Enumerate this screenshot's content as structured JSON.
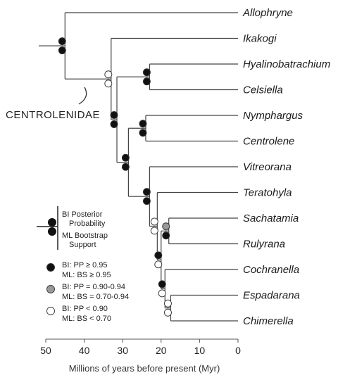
{
  "taxa": [
    "Allophryne",
    "Ikakogi",
    "Hyalinobatrachium",
    "Celsiella",
    "Nymphargus",
    "Centrolene",
    "Vitreorana",
    "Teratohyla",
    "Sachatamia",
    "Rulyrana",
    "Cochranella",
    "Espadarana",
    "Chimerella"
  ],
  "axis": {
    "title": "Millions of years before present (Myr)",
    "ticks": [
      50,
      40,
      30,
      20,
      10,
      0
    ],
    "xlim": [
      50,
      0
    ]
  },
  "clade_label": "CENTROLENIDAE",
  "nodes": [
    {
      "id": "root",
      "age": 45,
      "children": [
        "Allophryne",
        "n_cent"
      ],
      "pp": "black",
      "bs": "black"
    },
    {
      "id": "n_cent",
      "age": 33,
      "children": [
        "Ikakogi",
        "n_A"
      ],
      "pp": "white",
      "bs": "white"
    },
    {
      "id": "n_A",
      "age": 31.5,
      "children": [
        "n_HC",
        "n_B"
      ],
      "pp": "black",
      "bs": "black"
    },
    {
      "id": "n_HC",
      "age": 23,
      "children": [
        "Hyalinobatrachium",
        "Celsiella"
      ],
      "pp": "black",
      "bs": "black"
    },
    {
      "id": "n_B",
      "age": 28.5,
      "children": [
        "n_NC",
        "n_C"
      ],
      "pp": "black",
      "bs": "black"
    },
    {
      "id": "n_NC",
      "age": 24,
      "children": [
        "Nymphargus",
        "Centrolene"
      ],
      "pp": "black",
      "bs": "black"
    },
    {
      "id": "n_C",
      "age": 23,
      "children": [
        "Vitreorana",
        "n_D"
      ],
      "pp": "black",
      "bs": "black"
    },
    {
      "id": "n_D",
      "age": 21,
      "children": [
        "Teratohyla",
        "n_E"
      ],
      "pp": "white",
      "bs": "white"
    },
    {
      "id": "n_E",
      "age": 20,
      "children": [
        "n_SR",
        "n_F"
      ],
      "pp": "black",
      "bs": "white"
    },
    {
      "id": "n_SR",
      "age": 18,
      "children": [
        "Sachatamia",
        "Rulyrana"
      ],
      "pp": "gray",
      "bs": "black"
    },
    {
      "id": "n_F",
      "age": 19,
      "children": [
        "Cochranella",
        "n_EC"
      ],
      "pp": "black",
      "bs": "white"
    },
    {
      "id": "n_EC",
      "age": 17.5,
      "children": [
        "Espadarana",
        "Chimerella"
      ],
      "pp": "white",
      "bs": "white"
    }
  ],
  "legend": {
    "node_key": {
      "top": "BI Posterior Probability",
      "bottom": "ML Bootstrap Support"
    },
    "entries": [
      {
        "fill": "black",
        "pp": "BI: PP ≥ 0.95",
        "bs": "ML: BS ≥ 0.95"
      },
      {
        "fill": "gray",
        "pp": "BI: PP = 0.90-0.94",
        "bs": "ML: BS = 0.70-0.94"
      },
      {
        "fill": "white",
        "pp": "BI: PP < 0.90",
        "bs": "ML: BS < 0.70"
      }
    ]
  },
  "colors": {
    "black": "#111111",
    "gray": "#999999",
    "white": "#ffffff",
    "stroke": "#444444"
  }
}
